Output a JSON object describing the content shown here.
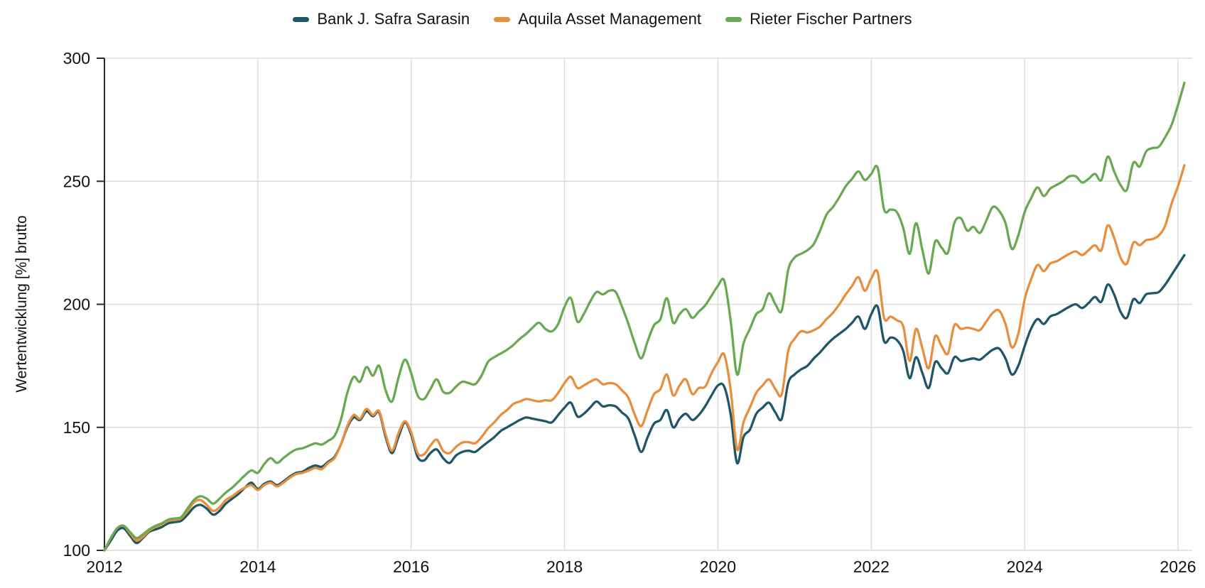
{
  "colors": {
    "background": "#ffffff",
    "grid": "#dcdcdc",
    "axis_spine": "#2a2a2a",
    "text": "#111111"
  },
  "chart_data": {
    "type": "line",
    "title": "",
    "xlabel": "",
    "ylabel": "Wertentwicklung [%] brutto",
    "legend_position": "top",
    "grid": true,
    "xlim": [
      2012,
      2026.17
    ],
    "ylim": [
      100,
      300
    ],
    "x_ticks": [
      2012,
      2014,
      2016,
      2018,
      2020,
      2022,
      2024,
      2026
    ],
    "y_ticks": [
      100,
      150,
      200,
      250,
      300
    ],
    "x": [
      2012.0,
      2012.083,
      2012.167,
      2012.25,
      2012.333,
      2012.417,
      2012.5,
      2012.583,
      2012.667,
      2012.75,
      2012.833,
      2012.917,
      2013.0,
      2013.083,
      2013.167,
      2013.25,
      2013.333,
      2013.417,
      2013.5,
      2013.583,
      2013.667,
      2013.75,
      2013.833,
      2013.917,
      2014.0,
      2014.083,
      2014.167,
      2014.25,
      2014.333,
      2014.417,
      2014.5,
      2014.583,
      2014.667,
      2014.75,
      2014.833,
      2014.917,
      2015.0,
      2015.083,
      2015.167,
      2015.25,
      2015.333,
      2015.417,
      2015.5,
      2015.583,
      2015.667,
      2015.75,
      2015.833,
      2015.917,
      2016.0,
      2016.083,
      2016.167,
      2016.25,
      2016.333,
      2016.417,
      2016.5,
      2016.583,
      2016.667,
      2016.75,
      2016.833,
      2016.917,
      2017.0,
      2017.083,
      2017.167,
      2017.25,
      2017.333,
      2017.417,
      2017.5,
      2017.583,
      2017.667,
      2017.75,
      2017.833,
      2017.917,
      2018.0,
      2018.083,
      2018.167,
      2018.25,
      2018.333,
      2018.417,
      2018.5,
      2018.583,
      2018.667,
      2018.75,
      2018.833,
      2018.917,
      2019.0,
      2019.083,
      2019.167,
      2019.25,
      2019.333,
      2019.417,
      2019.5,
      2019.583,
      2019.667,
      2019.75,
      2019.833,
      2019.917,
      2020.0,
      2020.083,
      2020.167,
      2020.25,
      2020.333,
      2020.417,
      2020.5,
      2020.583,
      2020.667,
      2020.75,
      2020.833,
      2020.917,
      2021.0,
      2021.083,
      2021.167,
      2021.25,
      2021.333,
      2021.417,
      2021.5,
      2021.583,
      2021.667,
      2021.75,
      2021.833,
      2021.917,
      2022.0,
      2022.083,
      2022.167,
      2022.25,
      2022.333,
      2022.417,
      2022.5,
      2022.583,
      2022.667,
      2022.75,
      2022.833,
      2022.917,
      2023.0,
      2023.083,
      2023.167,
      2023.25,
      2023.333,
      2023.417,
      2023.5,
      2023.583,
      2023.667,
      2023.75,
      2023.833,
      2023.917,
      2024.0,
      2024.083,
      2024.167,
      2024.25,
      2024.333,
      2024.417,
      2024.5,
      2024.583,
      2024.667,
      2024.75,
      2024.833,
      2024.917,
      2025.0,
      2025.083,
      2025.167,
      2025.25,
      2025.333,
      2025.417,
      2025.5,
      2025.583,
      2025.667,
      2025.75,
      2025.833,
      2025.917,
      2026.0,
      2026.083
    ],
    "series": [
      {
        "name": "Bank J. Safra Sarasin",
        "color": "#1f5668",
        "values": [
          100,
          104,
          108,
          109,
          106,
          103,
          105,
          107.5,
          108.5,
          109.5,
          111,
          111.5,
          112,
          114.5,
          117.5,
          118.5,
          117,
          114.5,
          116,
          119,
          121,
          123,
          125.5,
          127.5,
          125,
          127,
          128,
          126.5,
          128,
          130,
          131.5,
          132,
          133.5,
          134.5,
          134,
          136,
          138,
          143,
          150,
          154,
          153,
          156.5,
          154.5,
          156,
          146,
          139.5,
          146,
          152,
          147,
          138,
          136.5,
          139.5,
          141,
          137.5,
          135.5,
          138.5,
          140,
          140.5,
          140,
          142,
          144,
          146,
          148.5,
          150,
          151.5,
          153,
          154,
          153.5,
          153,
          152.5,
          152,
          155,
          158,
          160,
          154.5,
          155.5,
          158,
          160.5,
          158.5,
          159,
          158.5,
          156,
          153.5,
          146.5,
          140,
          146,
          151.5,
          153,
          157,
          150,
          153.5,
          155.5,
          153,
          155,
          158.5,
          163,
          167,
          166.5,
          155,
          135.5,
          146,
          149,
          155.5,
          158,
          160,
          156,
          153.5,
          168,
          171.5,
          173.5,
          175,
          178,
          180.5,
          183.5,
          186,
          188,
          190,
          192.5,
          195,
          190,
          196,
          199,
          185,
          186.5,
          185.5,
          181,
          170,
          178.5,
          172,
          166,
          176.5,
          174,
          172,
          178.5,
          177,
          177.5,
          178,
          177.5,
          179.5,
          181.5,
          182,
          178,
          171.5,
          175,
          183,
          190,
          194,
          192,
          195,
          196,
          197.5,
          199,
          200,
          198.5,
          200.5,
          203,
          201,
          208,
          204,
          197,
          194.5,
          202,
          200.5,
          204,
          204.5,
          205,
          208,
          212,
          216,
          220
        ]
      },
      {
        "name": "Aquila Asset Management",
        "color": "#e78f3e",
        "values": [
          100,
          105,
          109,
          110,
          107,
          104,
          105.5,
          108,
          109.5,
          110.5,
          112,
          112.5,
          113,
          116,
          119.5,
          120.5,
          118.5,
          116,
          117.5,
          120.5,
          122,
          124,
          125.5,
          126.5,
          124.5,
          126.5,
          127.5,
          126,
          127.5,
          129.5,
          131,
          131.5,
          132.5,
          133.5,
          133,
          135.5,
          137.5,
          143,
          150.5,
          155,
          153.5,
          157.5,
          155,
          156.5,
          147,
          140.5,
          147.5,
          152.5,
          148,
          139.5,
          139,
          142.5,
          145,
          140.5,
          139.5,
          142,
          143.8,
          144,
          143.5,
          146,
          149.5,
          152,
          155,
          157,
          159.5,
          160.5,
          161.5,
          161,
          160.5,
          161,
          161,
          164,
          168,
          170.5,
          166,
          167,
          168.5,
          169.5,
          167.5,
          168,
          167.5,
          165,
          162,
          155,
          150.5,
          157,
          163.5,
          165.5,
          171.5,
          163,
          167,
          169.5,
          163.5,
          166,
          166.5,
          172,
          176.5,
          179.5,
          165,
          141,
          152,
          158,
          164,
          167,
          169.5,
          165.5,
          163.5,
          181,
          186,
          189,
          188.5,
          189.5,
          191,
          194,
          196.5,
          200,
          204,
          207.5,
          211,
          205.5,
          210.5,
          213,
          194.5,
          195,
          193.5,
          191,
          177,
          190,
          182,
          174,
          187,
          183,
          180,
          191.5,
          190,
          190.5,
          190,
          189.5,
          193,
          196.5,
          197.5,
          192,
          182.5,
          188,
          202,
          210,
          216,
          213.5,
          216.5,
          217.5,
          219,
          220.5,
          221.5,
          220,
          222,
          224,
          222,
          232,
          227,
          219,
          216.5,
          225,
          224,
          226,
          226.5,
          228,
          232,
          241,
          248,
          256.5
        ]
      },
      {
        "name": "Rieter Fischer Partners",
        "color": "#68a951",
        "values": [
          100,
          105,
          109,
          110,
          107.5,
          105,
          106.5,
          108.5,
          110,
          111,
          112.5,
          113,
          113.5,
          117,
          120.5,
          122,
          121,
          119,
          121,
          123.5,
          125.5,
          128,
          130.5,
          132.5,
          131.5,
          135,
          137.5,
          135.5,
          137.5,
          139.5,
          141,
          141.5,
          142.5,
          143.5,
          143,
          144.5,
          146.5,
          153,
          164,
          170.5,
          168.5,
          174.5,
          171,
          175,
          165,
          160.5,
          170,
          177.5,
          172,
          163,
          161.5,
          165.5,
          169.5,
          164.5,
          164,
          166.5,
          168.5,
          168,
          167.5,
          171,
          176.5,
          178.5,
          180,
          181.5,
          183.5,
          186,
          188,
          190.5,
          192.5,
          190,
          189,
          192,
          199,
          202.5,
          193,
          196,
          201,
          205,
          204,
          205.5,
          205,
          199,
          192,
          184,
          178,
          185,
          191.5,
          194,
          202.5,
          192.5,
          196,
          198,
          194.5,
          197,
          199.5,
          203.5,
          207.5,
          209.5,
          193,
          171.5,
          184,
          190,
          196,
          198,
          204.5,
          200,
          197.5,
          214,
          219,
          220.5,
          222,
          224.5,
          230,
          236.5,
          239.5,
          243.5,
          248,
          251,
          254,
          250.5,
          253,
          255.5,
          238.5,
          238.5,
          237.5,
          231,
          220.5,
          233,
          222,
          212.5,
          225.5,
          223,
          221,
          233,
          235,
          230,
          231.5,
          229,
          234,
          239.5,
          238,
          233,
          222.5,
          228,
          237.5,
          243,
          247.5,
          244,
          247,
          248.5,
          250,
          252,
          252,
          249.5,
          251,
          253,
          250.5,
          260,
          254,
          248.5,
          246.5,
          257.5,
          256,
          262,
          263.5,
          264,
          268,
          273,
          281,
          290
        ]
      }
    ]
  }
}
